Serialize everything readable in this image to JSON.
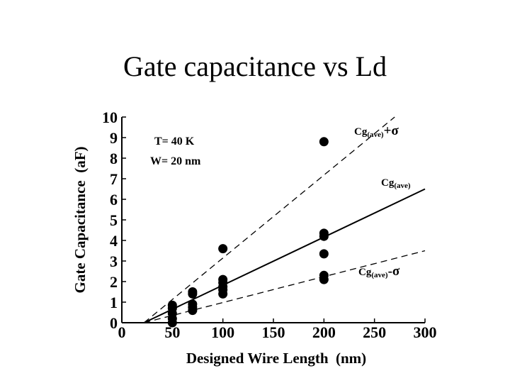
{
  "page": {
    "title": "Gate capacitance vs Ld"
  },
  "chart_data": {
    "type": "scatter",
    "title": "",
    "xlabel": "Designed Wire Length  (nm)",
    "ylabel": "Gate Capacitance  (aF)",
    "xlim": [
      0,
      300
    ],
    "ylim": [
      0,
      10
    ],
    "xticks": [
      0,
      50,
      100,
      150,
      200,
      250,
      300
    ],
    "yticks": [
      0,
      1,
      2,
      3,
      4,
      5,
      6,
      7,
      8,
      9,
      10
    ],
    "grid": false,
    "annotations": [
      "T= 40 K",
      "W= 20 nm"
    ],
    "points": [
      {
        "x": 50,
        "y": 0.0
      },
      {
        "x": 50,
        "y": 0.2
      },
      {
        "x": 50,
        "y": 0.45
      },
      {
        "x": 50,
        "y": 0.7
      },
      {
        "x": 50,
        "y": 0.85
      },
      {
        "x": 70,
        "y": 0.6
      },
      {
        "x": 70,
        "y": 0.75
      },
      {
        "x": 70,
        "y": 0.9
      },
      {
        "x": 70,
        "y": 1.4
      },
      {
        "x": 70,
        "y": 1.5
      },
      {
        "x": 100,
        "y": 1.4
      },
      {
        "x": 100,
        "y": 1.6
      },
      {
        "x": 100,
        "y": 1.75
      },
      {
        "x": 100,
        "y": 1.95
      },
      {
        "x": 100,
        "y": 2.1
      },
      {
        "x": 100,
        "y": 3.6
      },
      {
        "x": 200,
        "y": 2.1
      },
      {
        "x": 200,
        "y": 2.3
      },
      {
        "x": 200,
        "y": 3.35
      },
      {
        "x": 200,
        "y": 4.2
      },
      {
        "x": 200,
        "y": 4.35
      },
      {
        "x": 200,
        "y": 8.8
      }
    ],
    "series": [
      {
        "name": "Cg(ave)+σ",
        "main": "Cg",
        "sub": "(ave)",
        "suffix": "+σ",
        "style": "dashed",
        "x": [
          22,
          270
        ],
        "y": [
          0,
          10
        ]
      },
      {
        "name": "Cg(ave)",
        "main": "Cg",
        "sub": "(ave)",
        "suffix": "",
        "style": "solid",
        "x": [
          22,
          300
        ],
        "y": [
          0,
          6.5
        ]
      },
      {
        "name": "Cg(ave)-σ",
        "main": "Cg",
        "sub": "(ave)",
        "suffix": "-σ",
        "style": "dashed",
        "x": [
          22,
          300
        ],
        "y": [
          0,
          3.5
        ]
      }
    ]
  }
}
